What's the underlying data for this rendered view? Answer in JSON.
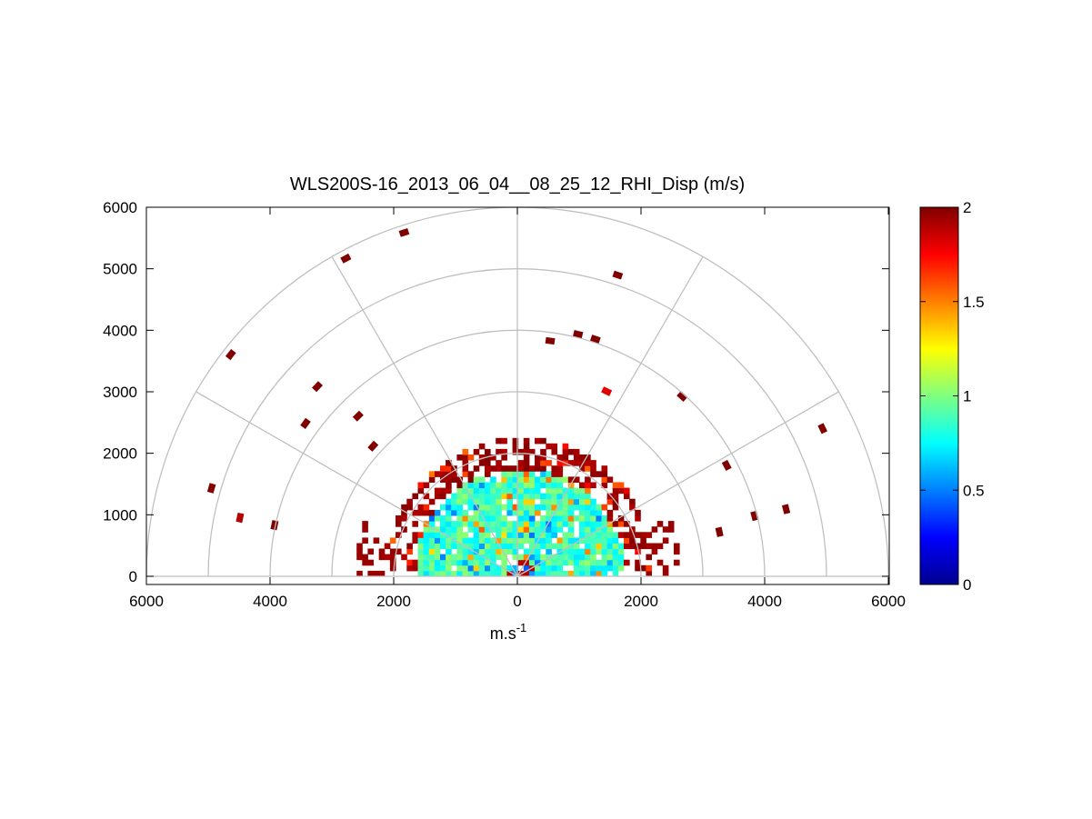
{
  "chart_data": {
    "type": "heatmap",
    "subtype": "polar-rhi-sector",
    "title": "WLS200S-16_2013_06_04__08_25_12_RHI_Disp (m/s)",
    "xlabel_base": "m.s",
    "xlabel_exp": "-1",
    "ylabel": "",
    "xlim": [
      -6000,
      6000
    ],
    "ylim": [
      -100,
      6000
    ],
    "xtick_values": [
      -6000,
      -4000,
      -2000,
      0,
      2000,
      4000,
      6000
    ],
    "xtick_labels": [
      "6000",
      "4000",
      "2000",
      "0",
      "2000",
      "4000",
      "6000"
    ],
    "ytick_values": [
      0,
      1000,
      2000,
      3000,
      4000,
      5000,
      6000
    ],
    "ytick_labels": [
      "0",
      "1000",
      "2000",
      "3000",
      "4000",
      "5000",
      "6000"
    ],
    "polar_rings": [
      2000,
      3000,
      4000,
      5000,
      6000
    ],
    "polar_spokes_deg": [
      0,
      30,
      60,
      90,
      120,
      150,
      180
    ],
    "colorbar": {
      "range": [
        0,
        2
      ],
      "tick_values": [
        0,
        0.5,
        1,
        1.5,
        2
      ],
      "tick_labels": [
        "0",
        "0.5",
        "1",
        "1.5",
        "2"
      ],
      "colormap": "jet"
    },
    "field_summary": {
      "core_range_m": 1700,
      "core_value": 0.85,
      "fringe_range_m": [
        1700,
        2200
      ],
      "fringe_value": 1.9
    },
    "scatter_points": [
      {
        "x": -1830,
        "y": 5580,
        "v": 2
      },
      {
        "x": -2770,
        "y": 5160,
        "v": 2
      },
      {
        "x": -4630,
        "y": 3600,
        "v": 2
      },
      {
        "x": -3230,
        "y": 3080,
        "v": 2
      },
      {
        "x": -3420,
        "y": 2480,
        "v": 2
      },
      {
        "x": -2570,
        "y": 2600,
        "v": 2
      },
      {
        "x": -2330,
        "y": 2110,
        "v": 2
      },
      {
        "x": -4940,
        "y": 1430,
        "v": 2
      },
      {
        "x": -4480,
        "y": 950,
        "v": 1.9
      },
      {
        "x": -3920,
        "y": 830,
        "v": 2
      },
      {
        "x": 1620,
        "y": 4890,
        "v": 2
      },
      {
        "x": 530,
        "y": 3820,
        "v": 2
      },
      {
        "x": 980,
        "y": 3930,
        "v": 2
      },
      {
        "x": 1260,
        "y": 3850,
        "v": 2
      },
      {
        "x": 1440,
        "y": 3000,
        "v": 1.8
      },
      {
        "x": 2660,
        "y": 2920,
        "v": 2
      },
      {
        "x": 4930,
        "y": 2400,
        "v": 2
      },
      {
        "x": 3380,
        "y": 1800,
        "v": 2
      },
      {
        "x": 4340,
        "y": 1090,
        "v": 2
      },
      {
        "x": 3830,
        "y": 980,
        "v": 2
      },
      {
        "x": 3260,
        "y": 720,
        "v": 2
      }
    ]
  }
}
